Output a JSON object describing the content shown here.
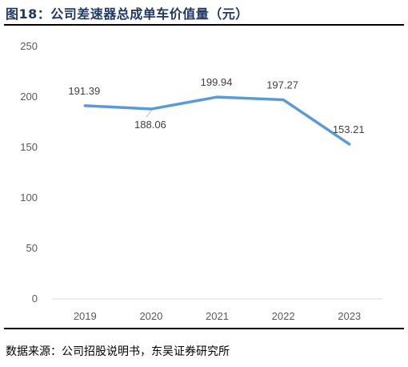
{
  "figure": {
    "title": "图18：公司差速器总成单车价值量（元）",
    "source": "数据来源：公司招股说明书，东吴证券研究所"
  },
  "colors": {
    "line": "#5b9bd5",
    "axis": "#d9d9d9",
    "text": "#595959",
    "title": "#1f3864"
  },
  "chart_data": {
    "type": "line",
    "title": "",
    "xlabel": "",
    "ylabel": "",
    "categories": [
      "2019",
      "2020",
      "2021",
      "2022",
      "2023"
    ],
    "series": [
      {
        "values": [
          191.39,
          188.06,
          199.94,
          197.27,
          153.21
        ],
        "data_labels": [
          "191.39",
          "188.06",
          "199.94",
          "197.27",
          "153.21"
        ]
      }
    ],
    "ylim": [
      0,
      250
    ],
    "yticks": [
      0,
      50,
      100,
      150,
      200,
      250
    ],
    "grid": false,
    "legend": "none"
  }
}
